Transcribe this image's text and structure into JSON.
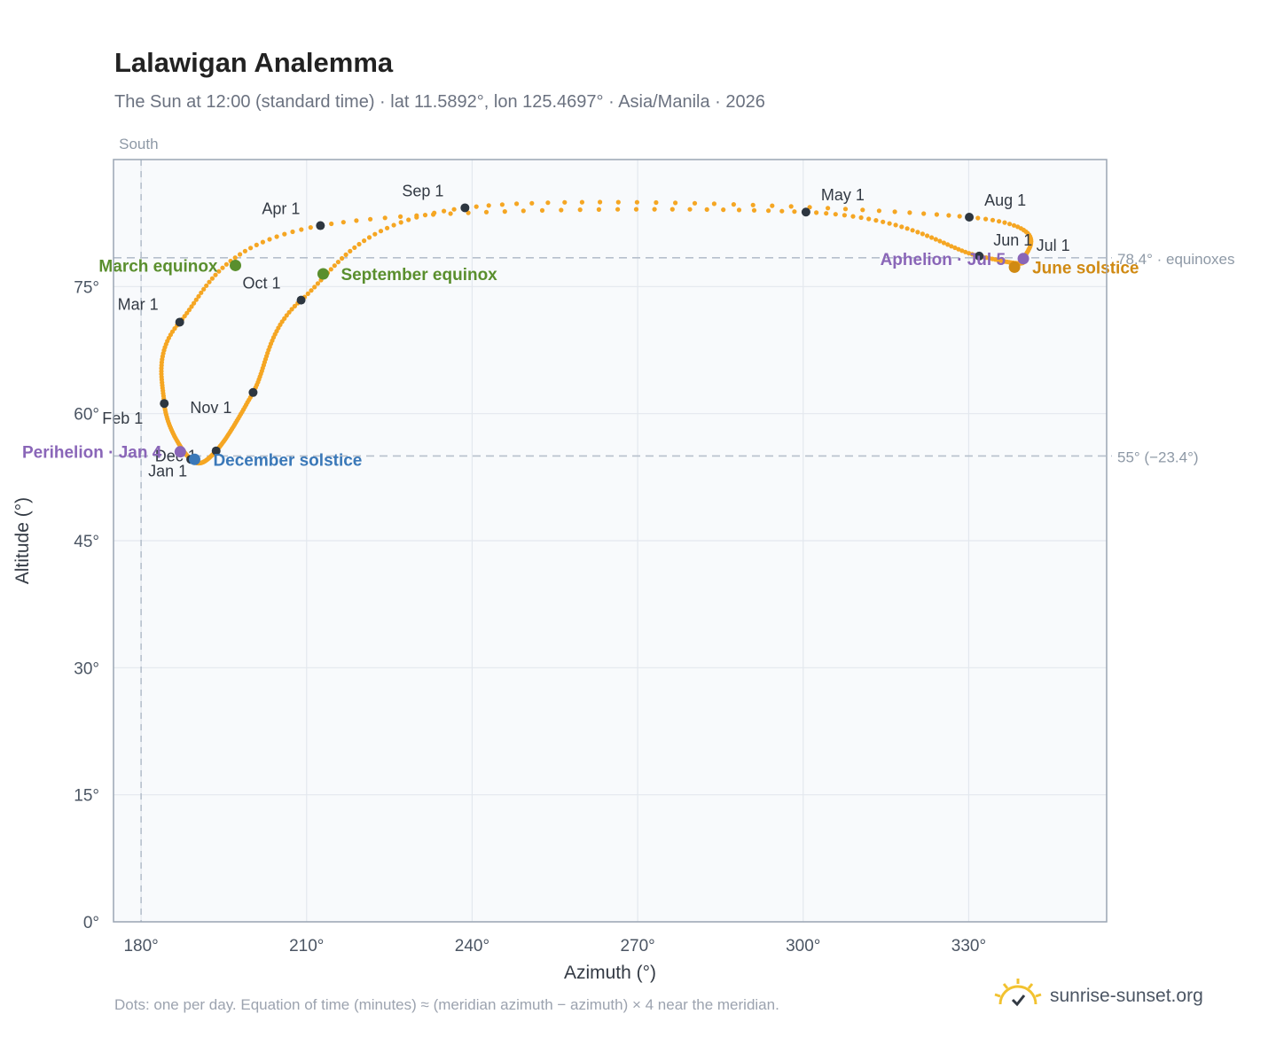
{
  "title": "Lalawigan Analemma",
  "subtitle": "The Sun at 12:00 (standard time) · lat 11.5892°, lon 125.4697° · Asia/Manila · 2026",
  "footnote": "Dots: one per day. Equation of time (minutes) ≈ (meridian azimuth − azimuth) × 4 near the meridian.",
  "brand": {
    "name": "sunrise-sunset.org",
    "icon": "sun-check-icon"
  },
  "colors": {
    "path": "#f5a623",
    "month_marker": "#2d3640",
    "equinox": "#5a8f2e",
    "june_solstice": "#d08a13",
    "december_solstice": "#3a78b8",
    "apsis": "#8a66b8",
    "plot_bg": "#f8fafc",
    "grid": "#e3e8ee",
    "reference": "#b6c0cc"
  },
  "chart_data": {
    "type": "scatter",
    "title": "Lalawigan Analemma",
    "xlabel": "Azimuth (°)",
    "ylabel": "Altitude (°)",
    "xlim": [
      175,
      355
    ],
    "ylim": [
      0,
      90
    ],
    "x_ticks": [
      180,
      210,
      240,
      270,
      300,
      330
    ],
    "x_tick_labels": [
      "180°",
      "210°",
      "240°",
      "270°",
      "300°",
      "330°"
    ],
    "y_ticks": [
      0,
      15,
      30,
      45,
      60,
      75
    ],
    "y_tick_labels": [
      "0°",
      "15°",
      "30°",
      "45°",
      "60°",
      "75°"
    ],
    "grid": true,
    "reference_lines": [
      {
        "axis": "x",
        "value": 180,
        "label": "South"
      },
      {
        "axis": "y",
        "value": 78.4,
        "label": "78.4° · equinoxes"
      },
      {
        "axis": "y",
        "value": 55,
        "label": "55° (−23.4°)"
      }
    ],
    "month_markers": [
      {
        "label": "Jan 1",
        "az": 189.0,
        "alt": 54.6
      },
      {
        "label": "Feb 1",
        "az": 184.2,
        "alt": 61.2
      },
      {
        "label": "Mar 1",
        "az": 187.0,
        "alt": 70.8
      },
      {
        "label": "Apr 1",
        "az": 212.5,
        "alt": 82.2
      },
      {
        "label": "May 1",
        "az": 300.5,
        "alt": 83.8
      },
      {
        "label": "Jun 1",
        "az": 331.9,
        "alt": 78.6
      },
      {
        "label": "Jul 1",
        "az": 340.0,
        "alt": 78.2
      },
      {
        "label": "Aug 1",
        "az": 330.1,
        "alt": 83.2
      },
      {
        "label": "Sep 1",
        "az": 238.7,
        "alt": 84.3
      },
      {
        "label": "Oct 1",
        "az": 209.0,
        "alt": 73.4
      },
      {
        "label": "Nov 1",
        "az": 200.3,
        "alt": 62.5
      },
      {
        "label": "Dec 1",
        "az": 193.6,
        "alt": 55.6
      }
    ],
    "events": [
      {
        "label": "March equinox",
        "az": 197.1,
        "alt": 77.5,
        "kind": "equinox"
      },
      {
        "label": "September equinox",
        "az": 213.0,
        "alt": 76.5,
        "kind": "equinox"
      },
      {
        "label": "June solstice",
        "az": 338.3,
        "alt": 77.3,
        "kind": "june_solstice"
      },
      {
        "label": "December solstice",
        "az": 189.7,
        "alt": 54.6,
        "kind": "december_solstice"
      },
      {
        "label": "Perihelion · Jan 4",
        "az": 187.1,
        "alt": 55.5,
        "kind": "apsis"
      },
      {
        "label": "Aphelion · Jul 5",
        "az": 339.9,
        "alt": 78.3,
        "kind": "apsis"
      }
    ]
  }
}
